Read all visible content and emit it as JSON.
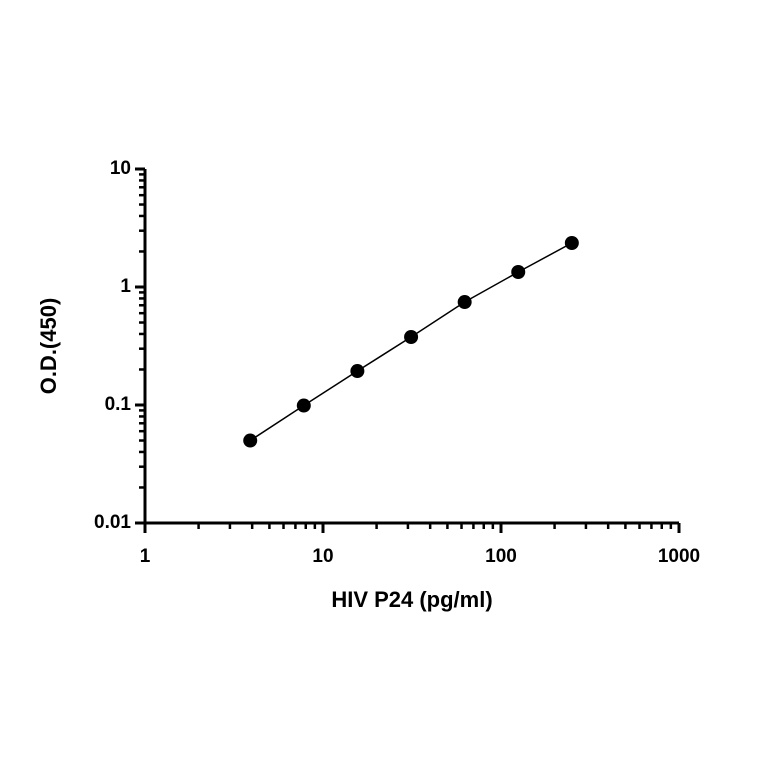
{
  "chart_data": {
    "type": "scatter",
    "x_label": "HIV P24 (pg/ml)",
    "y_label": "O.D.(450)",
    "log_x": true,
    "log_y": true,
    "xlim": [
      1,
      1000
    ],
    "ylim": [
      0.01,
      10
    ],
    "xticks": [
      1,
      10,
      100,
      1000
    ],
    "yticks": [
      0.01,
      0.1,
      1,
      10
    ],
    "x_minor_ticks": [
      2,
      3,
      4,
      5,
      6,
      7,
      8,
      9,
      20,
      30,
      40,
      50,
      60,
      70,
      80,
      90,
      200,
      300,
      400,
      500,
      600,
      700,
      800,
      900
    ],
    "y_minor_ticks": [
      0.02,
      0.03,
      0.04,
      0.05,
      0.06,
      0.07,
      0.08,
      0.09,
      0.2,
      0.3,
      0.4,
      0.5,
      0.6,
      0.7,
      0.8,
      0.9,
      2,
      3,
      4,
      5,
      6,
      7,
      8,
      9
    ],
    "series": [
      {
        "color": "#000000",
        "x": [
          3.9,
          7.8,
          15.6,
          31.25,
          62.5,
          125,
          250
        ],
        "values": [
          0.05,
          0.099,
          0.194,
          0.377,
          0.746,
          1.34,
          2.36
        ]
      }
    ]
  }
}
